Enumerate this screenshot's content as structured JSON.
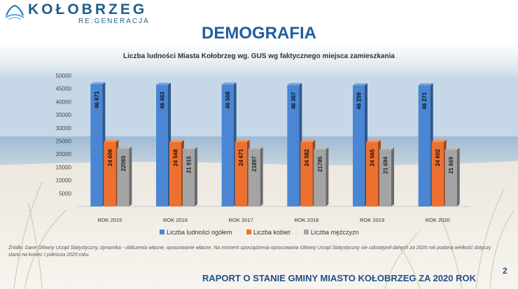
{
  "header": {
    "logo_text": "KOŁOBRZEG",
    "logo_sub": "RE:GENERACJA",
    "page_title": "DEMOGRAFIA"
  },
  "chart_data": {
    "type": "bar",
    "title": "Liczba ludności Miasta Kołobrzeg wg. GUS wg faktycznego miejsca zamieszkania",
    "xlabel": "",
    "ylabel": "",
    "ylim": [
      0,
      50000
    ],
    "yticks": [
      5000,
      10000,
      15000,
      20000,
      25000,
      30000,
      35000,
      40000,
      45000,
      50000
    ],
    "categories": [
      "ROK 2015",
      "ROK 2016",
      "ROK 2017",
      "ROK 2018",
      "ROK 2019",
      "ROK 2020"
    ],
    "series": [
      {
        "name": "Liczba ludności ogółem",
        "color": "#4a86d4",
        "values": [
          46671,
          46463,
          46568,
          46367,
          46259,
          46271
        ],
        "labels": [
          "46 671",
          "46 463",
          "46 568",
          "46 367",
          "46 259",
          "46 271"
        ]
      },
      {
        "name": "Liczba kobiet",
        "color": "#ee7030",
        "values": [
          24606,
          24548,
          24671,
          24582,
          24565,
          24602
        ],
        "labels": [
          "24 606",
          "24 548",
          "24 671",
          "24 582",
          "24 565",
          "24 602"
        ]
      },
      {
        "name": "Liczba mężczyzn",
        "color": "#a4a4a4",
        "values": [
          22065,
          21915,
          21897,
          21785,
          21694,
          21669
        ],
        "labels": [
          "22065",
          "21 915",
          "21897",
          "21785",
          "21 694",
          "21 669"
        ]
      }
    ],
    "legend_position": "bottom",
    "grid": false
  },
  "footer": {
    "source_note": "Źródło: Dane Główny Urząd Statystyczny, dynamika - obliczenia własne, opracowanie własne. Na moment sporządzenia opracowania Główny Urząd Statystyczny nie udostępnił danych za 2020 rok podaną wielkość dotyczy stanu na koniec I półrocza 2020 roku.",
    "report_title": "RAPORT O STANIE GMINY MIASTO KOŁOBRZEG ZA 2020 ROK",
    "page_number": "2"
  }
}
